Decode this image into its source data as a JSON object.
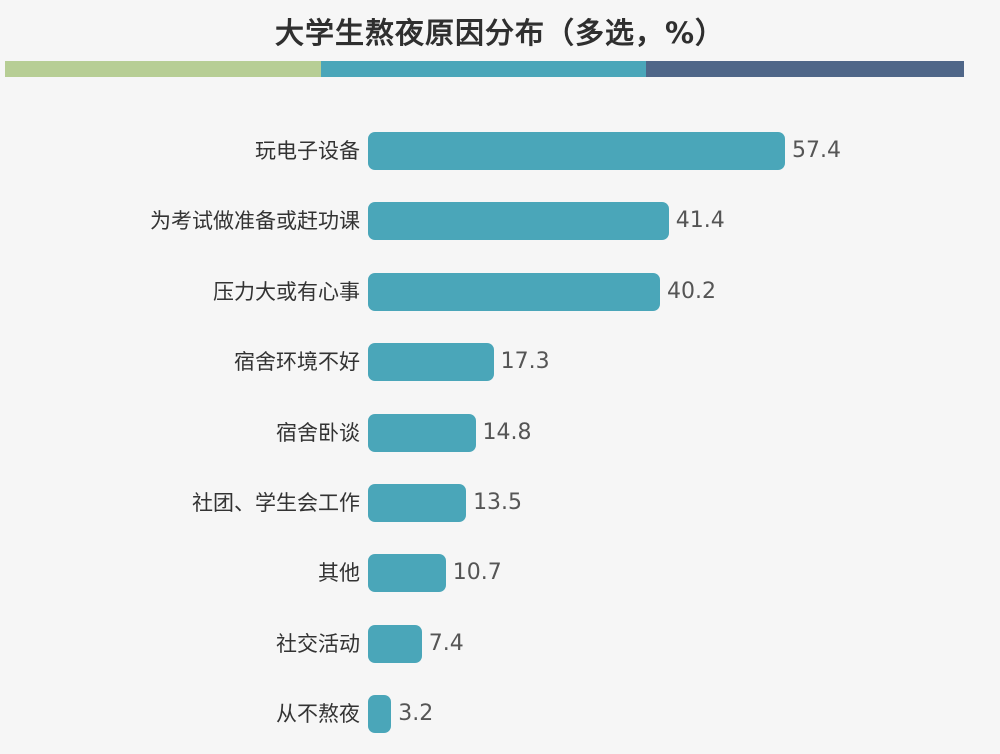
{
  "chart_data": {
    "type": "bar",
    "orientation": "horizontal",
    "title": "大学生熬夜原因分布（多选，%）",
    "categories": [
      "玩电子设备",
      "为考试做准备或赶功课",
      "压力大或有心事",
      "宿舍环境不好",
      "宿舍卧谈",
      "社团、学生会工作",
      "其他",
      "社交活动",
      "从不熬夜"
    ],
    "values": [
      57.4,
      41.4,
      40.2,
      17.3,
      14.8,
      13.5,
      10.7,
      7.4,
      3.2
    ],
    "value_labels": [
      "57.4",
      "41.4",
      "40.2",
      "17.3",
      "14.8",
      "13.5",
      "10.7",
      "7.4",
      "3.2"
    ],
    "xlim": [
      0,
      57.4
    ],
    "bar_color": "#4aa6b9",
    "header_stripe_colors": [
      "#b7ce95",
      "#4aa6b9",
      "#4f6688"
    ],
    "grid": false,
    "legend": "none"
  }
}
